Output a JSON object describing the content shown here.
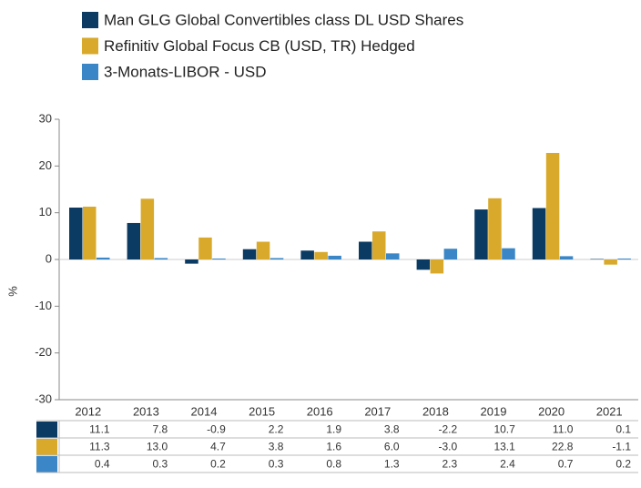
{
  "chart_data": {
    "type": "bar",
    "y_label": "%",
    "categories": [
      "2012",
      "2013",
      "2014",
      "2015",
      "2016",
      "2017",
      "2018",
      "2019",
      "2020",
      "2021"
    ],
    "series": [
      {
        "name": "Man GLG Global Convertibles class DL USD Shares",
        "color": "#0b3a63",
        "values": [
          11.1,
          7.8,
          -0.9,
          2.2,
          1.9,
          3.8,
          -2.2,
          10.7,
          11.0,
          0.1
        ],
        "value_labels": [
          "11.1",
          "7.8",
          "-0.9",
          "2.2",
          "1.9",
          "3.8",
          "-2.2",
          "10.7",
          "11.0",
          "0.1"
        ]
      },
      {
        "name": "Refinitiv Global Focus CB (USD, TR) Hedged",
        "color": "#d8a92b",
        "values": [
          11.3,
          13.0,
          4.7,
          3.8,
          1.6,
          6.0,
          -3.0,
          13.1,
          22.8,
          -1.1
        ],
        "value_labels": [
          "11.3",
          "13.0",
          "4.7",
          "3.8",
          "1.6",
          "6.0",
          "-3.0",
          "13.1",
          "22.8",
          "-1.1"
        ]
      },
      {
        "name": "3-Monats-LIBOR - USD",
        "color": "#3a86c6",
        "values": [
          0.4,
          0.3,
          0.2,
          0.3,
          0.8,
          1.3,
          2.3,
          2.4,
          0.7,
          0.2
        ],
        "value_labels": [
          "0.4",
          "0.3",
          "0.2",
          "0.3",
          "0.8",
          "1.3",
          "2.3",
          "2.4",
          "0.7",
          "0.2"
        ]
      }
    ],
    "ylim": [
      -30,
      30
    ],
    "yticks": [
      -30,
      -20,
      -10,
      0,
      10,
      20,
      30
    ]
  }
}
